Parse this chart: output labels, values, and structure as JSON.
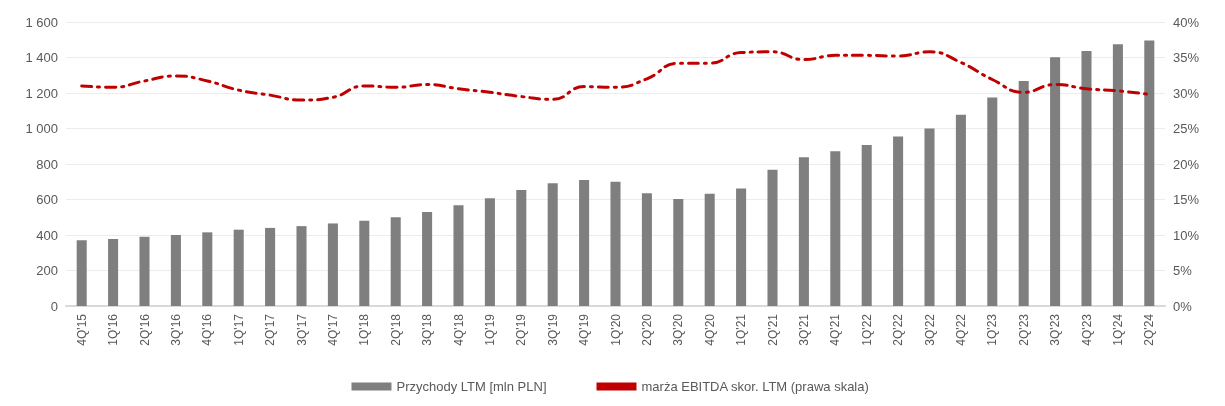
{
  "chart_data": {
    "type": "bar",
    "categories": [
      "4Q'15",
      "1Q'16",
      "2Q'16",
      "3Q'16",
      "4Q'16",
      "1Q'17",
      "2Q'17",
      "3Q'17",
      "4Q'17",
      "1Q'18",
      "2Q'18",
      "3Q'18",
      "4Q'18",
      "1Q'19",
      "2Q'19",
      "3Q'19",
      "4Q'19",
      "1Q'20",
      "2Q'20",
      "3Q'20",
      "4Q'20",
      "1Q'21",
      "2Q'21",
      "3Q'21",
      "4Q'21",
      "1Q'22",
      "2Q'22",
      "3Q'22",
      "4Q'22",
      "1Q'23",
      "2Q'23",
      "3Q'23",
      "4Q'23",
      "1Q'24",
      "2Q'24"
    ],
    "series": [
      {
        "name": "Przychody LTM [mln PLN]",
        "color": "#7f7f7f",
        "values": [
          370,
          378,
          390,
          400,
          415,
          430,
          440,
          450,
          465,
          480,
          500,
          530,
          568,
          607,
          653,
          692,
          710,
          700,
          635,
          603,
          633,
          662,
          768,
          838,
          872,
          907,
          955,
          1000,
          1078,
          1175,
          1267,
          1402,
          1436,
          1475,
          1496
        ]
      },
      {
        "name": "marża EBITDA skor. LTM (prawa skala)",
        "type": "line",
        "axis": "y2",
        "color": "#c00000",
        "line_style": "dashed",
        "marker": "none",
        "values": [
          31.0,
          30.8,
          31.7,
          32.4,
          31.7,
          30.4,
          29.7,
          29.0,
          29.4,
          31.0,
          30.8,
          31.2,
          30.6,
          30.1,
          29.5,
          29.1,
          30.9,
          30.8,
          32.0,
          34.2,
          34.2,
          35.7,
          35.8,
          34.7,
          35.3,
          35.3,
          35.2,
          35.8,
          34.3,
          31.9,
          30.1,
          31.2,
          30.6,
          30.3,
          29.8
        ]
      }
    ],
    "ylim": [
      0,
      1600
    ],
    "yticks": [
      0,
      200,
      400,
      600,
      800,
      {
        "value": 1000,
        "label": "1 000"
      },
      {
        "value": 1200,
        "label": "1 200"
      },
      {
        "value": 1400,
        "label": "1 400"
      },
      {
        "value": 1600,
        "label": "1 600"
      }
    ],
    "y2lim": [
      0,
      40
    ],
    "y2ticks": [
      {
        "value": 0,
        "label": "0%"
      },
      {
        "value": 5,
        "label": "5%"
      },
      {
        "value": 10,
        "label": "10%"
      },
      {
        "value": 15,
        "label": "15%"
      },
      {
        "value": 20,
        "label": "20%"
      },
      {
        "value": 25,
        "label": "25%"
      },
      {
        "value": 30,
        "label": "30%"
      },
      {
        "value": 35,
        "label": "35%"
      },
      {
        "value": 40,
        "label": "40%"
      }
    ],
    "grid": "y",
    "legend": "bottom"
  }
}
